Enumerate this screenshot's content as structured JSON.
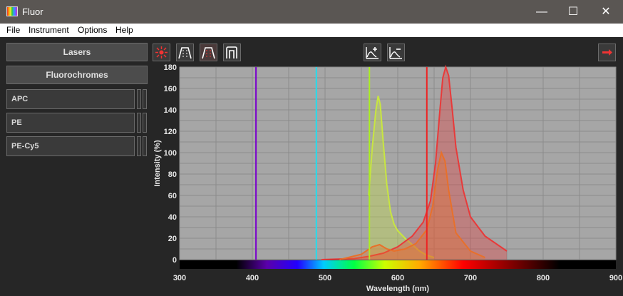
{
  "window": {
    "title": "Fluor"
  },
  "menu": [
    "File",
    "Instrument",
    "Options",
    "Help"
  ],
  "sidebar": {
    "lasers_label": "Lasers",
    "fluorochromes_label": "Fluorochromes",
    "items": [
      {
        "label": "APC"
      },
      {
        "label": "PE"
      },
      {
        "label": "PE-Cy5"
      }
    ]
  },
  "toolbar": {
    "icons": [
      "laser-icon",
      "filter-band-icon",
      "filter-band-red-icon",
      "filter-cutoff-icon",
      "add-spectrum-icon",
      "remove-spectrum-icon",
      "export-arrow-icon"
    ]
  },
  "colors": {
    "laser_violet": "#7a00cc",
    "laser_cyan": "#22ddee",
    "laser_green": "#aaee22",
    "laser_red": "#ee2222",
    "pe_color": "#c8e640",
    "apc_color": "#e83a3a",
    "pecy5_color": "#e8702a"
  },
  "chart_data": {
    "type": "area",
    "xlabel": "Wavelength (nm)",
    "ylabel": "Intensity (%)",
    "xlim": [
      300,
      900
    ],
    "ylim": [
      0,
      180
    ],
    "xticks": [
      300,
      400,
      500,
      600,
      700,
      800,
      900
    ],
    "yticks": [
      0,
      20,
      40,
      60,
      80,
      100,
      120,
      140,
      160,
      180
    ],
    "grid": true,
    "lasers": [
      405,
      488,
      561,
      640
    ],
    "series": [
      {
        "name": "PE",
        "x": [
          560,
          565,
          570,
          573,
          576,
          580,
          585,
          590,
          595,
          600,
          610,
          620,
          630,
          640,
          650
        ],
        "y": [
          60,
          105,
          140,
          153,
          145,
          110,
          70,
          45,
          33,
          27,
          20,
          14,
          8,
          4,
          2
        ]
      },
      {
        "name": "APC",
        "x": [
          495,
          540,
          560,
          580,
          600,
          620,
          635,
          645,
          652,
          658,
          662,
          666,
          670,
          675,
          680,
          690,
          700,
          720,
          750
        ],
        "y": [
          0,
          1,
          3,
          6,
          12,
          22,
          35,
          55,
          90,
          140,
          170,
          180,
          172,
          140,
          105,
          65,
          40,
          22,
          8
        ]
      },
      {
        "name": "PE-Cy5",
        "x": [
          520,
          550,
          565,
          575,
          585,
          595,
          610,
          625,
          640,
          648,
          655,
          660,
          665,
          670,
          680,
          700,
          720
        ],
        "y": [
          0,
          5,
          12,
          14,
          10,
          8,
          10,
          15,
          28,
          50,
          85,
          100,
          92,
          65,
          25,
          8,
          2
        ]
      }
    ]
  }
}
